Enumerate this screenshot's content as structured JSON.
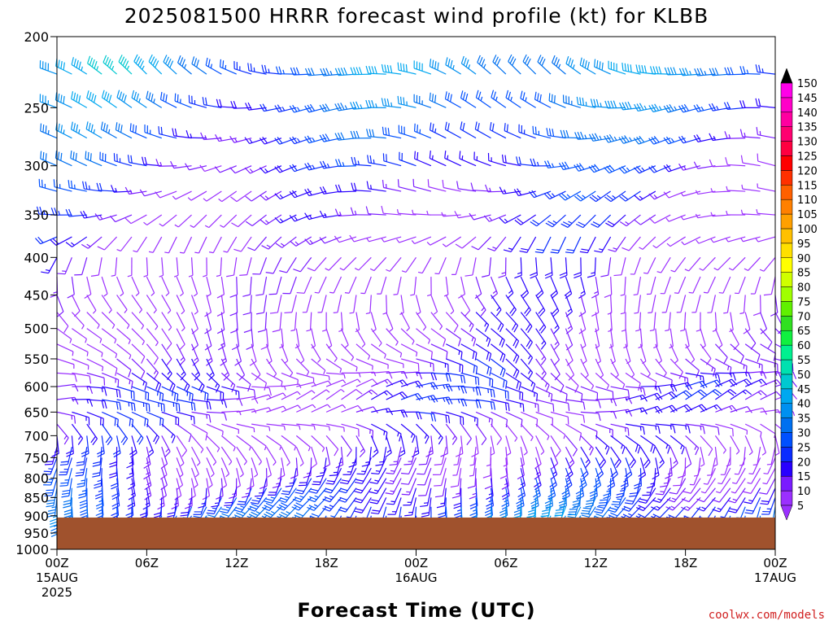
{
  "chart_data": {
    "type": "wind_barbs",
    "title": "2025081500 HRRR forecast wind profile (kt) for KLBB",
    "xlabel": "Forecast Time (UTC)",
    "ylabel": "",
    "y_axis": {
      "scale": "log",
      "direction": "inverted",
      "range": [
        1000,
        200
      ],
      "ticks": [
        "200",
        "250",
        "300",
        "350",
        "400",
        "450",
        "500",
        "550",
        "600",
        "650",
        "700",
        "750",
        "800",
        "850",
        "900",
        "950",
        "1000"
      ]
    },
    "x_axis": {
      "range_hours": [
        0,
        48
      ],
      "ticks": [
        {
          "hour": 0,
          "label": "00Z",
          "date": "15AUG",
          "year": "2025"
        },
        {
          "hour": 6,
          "label": "06Z",
          "date": "",
          "year": ""
        },
        {
          "hour": 12,
          "label": "12Z",
          "date": "",
          "year": ""
        },
        {
          "hour": 18,
          "label": "18Z",
          "date": "",
          "year": ""
        },
        {
          "hour": 24,
          "label": "00Z",
          "date": "16AUG",
          "year": ""
        },
        {
          "hour": 30,
          "label": "06Z",
          "date": "",
          "year": ""
        },
        {
          "hour": 36,
          "label": "12Z",
          "date": "",
          "year": ""
        },
        {
          "hour": 42,
          "label": "18Z",
          "date": "",
          "year": ""
        },
        {
          "hour": 48,
          "label": "00Z",
          "date": "17AUG",
          "year": ""
        }
      ]
    },
    "ground": {
      "surface_pressure_hpa": 905,
      "color": "#a0522d"
    },
    "colorbar": {
      "levels": [
        "5",
        "10",
        "15",
        "20",
        "25",
        "30",
        "35",
        "40",
        "45",
        "50",
        "55",
        "60",
        "65",
        "70",
        "75",
        "80",
        "85",
        "90",
        "95",
        "100",
        "105",
        "110",
        "115",
        "120",
        "125",
        "130",
        "135",
        "140",
        "145",
        "150"
      ],
      "colors": [
        "#9b30ff",
        "#7a1cff",
        "#2800ff",
        "#0a2cff",
        "#0050ff",
        "#0070f0",
        "#0090f0",
        "#00a8f0",
        "#00c8d0",
        "#00e0b0",
        "#00f090",
        "#10f040",
        "#30e020",
        "#60f000",
        "#a0ff00",
        "#d0ff00",
        "#ffff00",
        "#ffe000",
        "#ffc000",
        "#ffa000",
        "#ff8000",
        "#ff6000",
        "#ff3000",
        "#ff0000",
        "#ff0040",
        "#ff0070",
        "#ff00a0",
        "#ff00c8",
        "#ff00e8",
        "#e000ff"
      ],
      "under_color": "#9b30ff",
      "over_color": "#000000"
    },
    "wind_field_note": "",
    "pressure_levels_hpa": [
      225,
      250,
      275,
      300,
      325,
      350,
      375,
      400,
      425,
      450,
      475,
      500,
      525,
      550,
      575,
      600,
      625,
      650,
      675,
      700,
      725,
      750,
      775,
      800,
      825,
      850,
      875,
      900
    ],
    "time_step_hours": 1,
    "wind_speed_kt_profile": {
      "225": 35,
      "250": 30,
      "275": 25,
      "300": 20,
      "325": 15,
      "350": 12,
      "375": 10,
      "400": 8,
      "425": 8,
      "450": 7,
      "475": 7,
      "500": 7,
      "525": 8,
      "550": 10,
      "575": 12,
      "600": 15,
      "625": 15,
      "650": 12,
      "675": 10,
      "700": 10,
      "725": 10,
      "750": 12,
      "775": 15,
      "800": 18,
      "825": 22,
      "850": 25,
      "875": 30,
      "900": 30
    },
    "wind_direction_deg_profile": {
      "225": 290,
      "250": 280,
      "275": 275,
      "300": 270,
      "325": 260,
      "350": 250,
      "375": 230,
      "400": 200,
      "425": 180,
      "450": 170,
      "475": 160,
      "500": 150,
      "525": 140,
      "550": 130,
      "575": 110,
      "600": 90,
      "625": 80,
      "650": 90,
      "675": 120,
      "700": 150,
      "725": 170,
      "750": 180,
      "775": 185,
      "800": 190,
      "825": 195,
      "850": 200,
      "875": 200,
      "900": 200
    }
  },
  "credit": "coolwx.com/models"
}
